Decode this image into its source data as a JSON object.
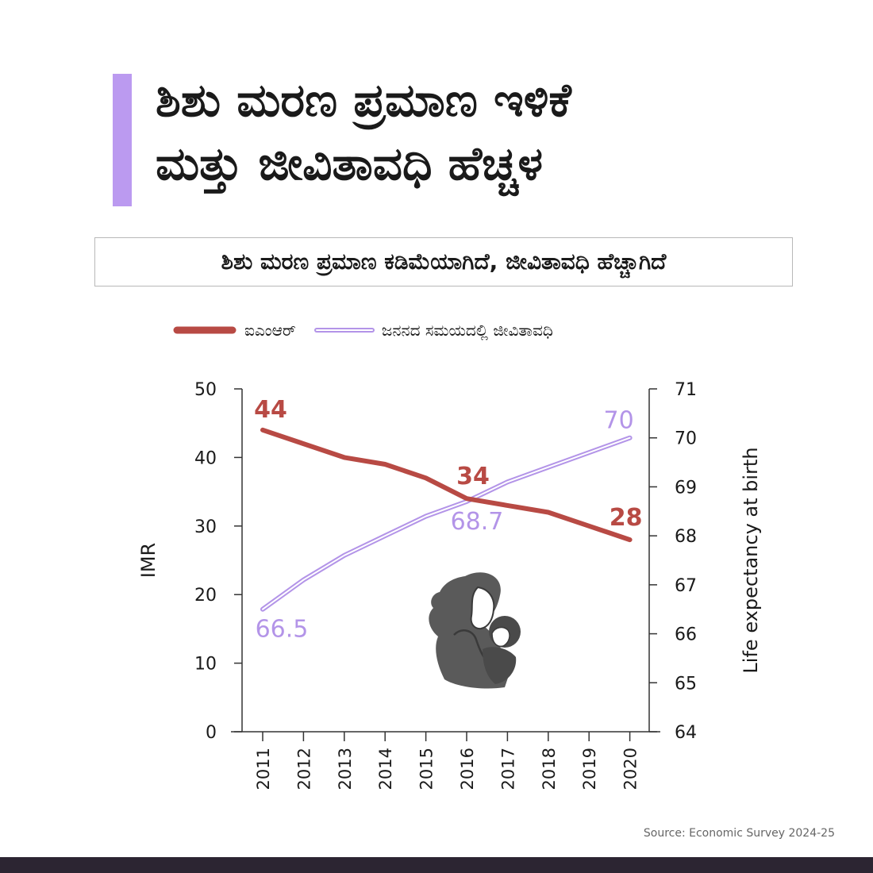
{
  "title_lines": [
    "ಶಿಶು ಮರಣ ಪ್ರಮಾಣ ಇಳಿಕೆ",
    "ಮತ್ತು ಜೀವಿತಾವಧಿ ಹೆಚ್ಚಳ"
  ],
  "subtitle": "ಶಿಶು ಮರಣ ಪ್ರಮಾಣ ಕಡಿಮೆಯಾಗಿದೆ, ಜೀವಿತಾವಧಿ ಹೆಚ್ಚಾಗಿದೆ",
  "source": "Source: Economic Survey 2024-25",
  "colors": {
    "accent": "#bb9af0",
    "imr": "#b84a44",
    "life": "#b394e8",
    "footer": "#2c2532"
  },
  "illustration_icon": "mother-baby-icon",
  "chart_data": {
    "type": "line",
    "x": [
      "2011",
      "2012",
      "2013",
      "2014",
      "2015",
      "2016",
      "2017",
      "2018",
      "2019",
      "2020"
    ],
    "series": [
      {
        "name": "ಐಎಂಆರ್",
        "axis": "left",
        "values": [
          44,
          42,
          40,
          39,
          37,
          34,
          33,
          32,
          30,
          28
        ]
      },
      {
        "name": "ಜನನದ ಸಮಯದಲ್ಲಿ ಜೀವಿತಾವಧಿ",
        "axis": "right",
        "values": [
          66.5,
          67.1,
          67.6,
          68.0,
          68.4,
          68.7,
          69.1,
          69.4,
          69.7,
          70.0
        ]
      }
    ],
    "annotations": [
      {
        "series": 0,
        "index": 0,
        "text": "44"
      },
      {
        "series": 0,
        "index": 5,
        "text": "34"
      },
      {
        "series": 0,
        "index": 9,
        "text": "28"
      },
      {
        "series": 1,
        "index": 0,
        "text": "66.5"
      },
      {
        "series": 1,
        "index": 5,
        "text": "68.7"
      },
      {
        "series": 1,
        "index": 9,
        "text": "70"
      }
    ],
    "ylabel_left": "IMR",
    "ylabel_right": "Life expectancy at birth",
    "ylim_left": [
      0,
      50
    ],
    "yticks_left": [
      0,
      10,
      20,
      30,
      40,
      50
    ],
    "ylim_right": [
      64,
      71
    ],
    "yticks_right": [
      64,
      65,
      66,
      67,
      68,
      69,
      70,
      71
    ],
    "grid": false,
    "legend_position": "top-left"
  }
}
